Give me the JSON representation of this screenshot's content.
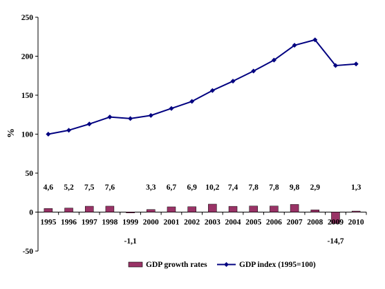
{
  "chart_data": {
    "type": "bar+line",
    "title": "",
    "xlabel": "",
    "ylabel": "%",
    "ylim": [
      -50,
      250
    ],
    "yticks": [
      "-50",
      "0",
      "50",
      "100",
      "150",
      "200",
      "250"
    ],
    "grid": false,
    "categories": [
      "1995",
      "1996",
      "1997",
      "1998",
      "1999",
      "2000",
      "2001",
      "2002",
      "2003",
      "2004",
      "2005",
      "2006",
      "2007",
      "2008",
      "2009",
      "2010"
    ],
    "series": [
      {
        "name": "GDP growth rates",
        "type": "bar",
        "color": "#993366",
        "values": [
          4.6,
          5.2,
          7.5,
          7.6,
          -1.1,
          3.3,
          6.7,
          6.9,
          10.2,
          7.4,
          7.8,
          7.8,
          9.8,
          2.9,
          -14.7,
          1.3
        ],
        "labels": [
          "4,6",
          "5,2",
          "7,5",
          "7,6",
          "-1,1",
          "3,3",
          "6,7",
          "6,9",
          "10,2",
          "7,4",
          "7,8",
          "7,8",
          "9,8",
          "2,9",
          "-14,7",
          "1,3"
        ]
      },
      {
        "name": "GDP index (1995=100)",
        "type": "line",
        "color": "#000080",
        "values": [
          100,
          105,
          113,
          122,
          120,
          124,
          133,
          142,
          156,
          168,
          181,
          195,
          214,
          221,
          188,
          190
        ]
      }
    ],
    "legend": "bottom"
  }
}
